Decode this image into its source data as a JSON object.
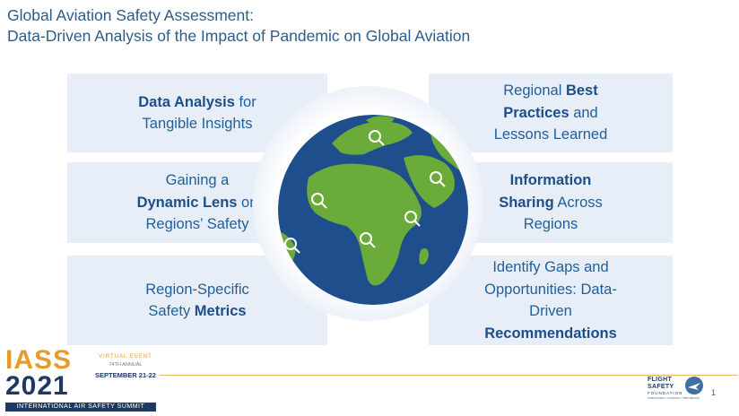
{
  "slide": {
    "title_line1": "Global Aviation Safety Assessment:",
    "title_line2": "Data-Driven Analysis of the Impact of Pandemic on Global Aviation",
    "page_number": "1"
  },
  "panels": {
    "left1": {
      "bold1": "Data Analysis",
      "text1": " for",
      "text2": "Tangible Insights"
    },
    "left2": {
      "text1": "Gaining a",
      "bold1": "Dynamic Lens",
      "text2": " on",
      "text3": "Regions’ Safety"
    },
    "left3": {
      "text1": "Region-Specific",
      "text2": "Safety ",
      "bold1": "Metrics"
    },
    "right1": {
      "text1": "Regional ",
      "bold1": "Best",
      "bold2": "Practices",
      "text2": " and",
      "text3": "Lessons Learned"
    },
    "right2": {
      "bold1": "Information",
      "bold2": "Sharing",
      "text1": " Across",
      "text2": "Regions"
    },
    "right3": {
      "text1": "Identify Gaps and",
      "text2": "Opportunities: Data-",
      "text3": "Driven",
      "bold1": "Recommendations"
    }
  },
  "logos": {
    "iass_word": "IASS",
    "iass_year": "2021",
    "iass_virtual": "VIRTUAL EVENT",
    "iass_annual": "74TH ANNUAL",
    "iass_dates": "SEPTEMBER 21-22",
    "iass_strip": "INTERNATIONAL AIR SAFETY SUMMIT",
    "fsf_line1": "FLIGHT",
    "fsf_line2": "SAFETY",
    "fsf_line3": "FOUNDATION",
    "fsf_tag": "independent • impartial • international"
  },
  "icons": [
    "globe-icon",
    "magnifier-icon"
  ],
  "colors": {
    "panel_bg": "#e8eef7",
    "text_blue": "#1f5f9c",
    "ocean": "#1e4f8c",
    "land": "#6aab3a",
    "accent_orange": "#e79b2b"
  }
}
